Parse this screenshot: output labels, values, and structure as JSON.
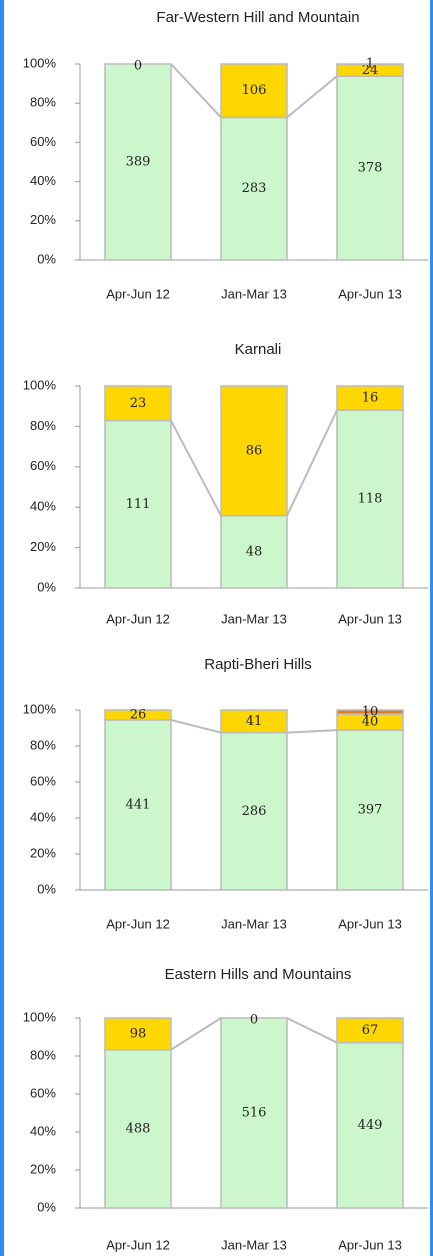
{
  "chart_data": [
    {
      "type": "bar",
      "stacked": "percent",
      "title": "Far-Western Hill and Mountain",
      "categories": [
        "Apr-Jun 12",
        "Jan-Mar 13",
        "Apr-Jun 13"
      ],
      "series": [
        {
          "color": "#ccf7cc",
          "values": [
            389,
            283,
            378
          ]
        },
        {
          "color": "#ffd700",
          "values": [
            0,
            106,
            24
          ]
        },
        {
          "color": "#e07b20",
          "values": [
            null,
            null,
            1
          ]
        }
      ],
      "ylim": [
        0,
        100
      ],
      "yticks": [
        {
          "value": 0,
          "label": "0%"
        },
        {
          "value": 20,
          "label": "20%"
        },
        {
          "value": 40,
          "label": "40%"
        },
        {
          "value": 60,
          "label": "60%"
        },
        {
          "value": 80,
          "label": "80%"
        },
        {
          "value": 100,
          "label": "100%"
        }
      ],
      "grid": false
    },
    {
      "type": "bar",
      "stacked": "percent",
      "title": "Karnali",
      "categories": [
        "Apr-Jun 12",
        "Jan-Mar 13",
        "Apr-Jun 13"
      ],
      "series": [
        {
          "color": "#ccf7cc",
          "values": [
            111,
            48,
            118
          ]
        },
        {
          "color": "#ffd700",
          "values": [
            23,
            86,
            16
          ]
        }
      ],
      "ylim": [
        0,
        100
      ],
      "yticks": [
        {
          "value": 0,
          "label": "0%"
        },
        {
          "value": 20,
          "label": "20%"
        },
        {
          "value": 40,
          "label": "40%"
        },
        {
          "value": 60,
          "label": "60%"
        },
        {
          "value": 80,
          "label": "80%"
        },
        {
          "value": 100,
          "label": "100%"
        }
      ],
      "grid": false
    },
    {
      "type": "bar",
      "stacked": "percent",
      "title": "Rapti-Bheri Hills",
      "categories": [
        "Apr-Jun 12",
        "Jan-Mar 13",
        "Apr-Jun 13"
      ],
      "series": [
        {
          "color": "#ccf7cc",
          "values": [
            441,
            286,
            397
          ]
        },
        {
          "color": "#ffd700",
          "values": [
            26,
            41,
            40
          ]
        },
        {
          "color": "#e07b20",
          "values": [
            null,
            null,
            10
          ]
        }
      ],
      "ylim": [
        0,
        100
      ],
      "yticks": [
        {
          "value": 0,
          "label": "0%"
        },
        {
          "value": 20,
          "label": "20%"
        },
        {
          "value": 40,
          "label": "40%"
        },
        {
          "value": 60,
          "label": "60%"
        },
        {
          "value": 80,
          "label": "80%"
        },
        {
          "value": 100,
          "label": "100%"
        }
      ],
      "grid": false
    },
    {
      "type": "bar",
      "stacked": "percent",
      "title": "Eastern Hills and Mountains",
      "categories": [
        "Apr-Jun 12",
        "Jan-Mar 13",
        "Apr-Jun 13"
      ],
      "series": [
        {
          "color": "#ccf7cc",
          "values": [
            488,
            516,
            449
          ]
        },
        {
          "color": "#ffd700",
          "values": [
            98,
            0,
            67
          ]
        }
      ],
      "ylim": [
        0,
        100
      ],
      "yticks": [
        {
          "value": 0,
          "label": "0%"
        },
        {
          "value": 20,
          "label": "20%"
        },
        {
          "value": 40,
          "label": "40%"
        },
        {
          "value": 60,
          "label": "60%"
        },
        {
          "value": 80,
          "label": "80%"
        },
        {
          "value": 100,
          "label": "100%"
        }
      ],
      "grid": false
    }
  ]
}
